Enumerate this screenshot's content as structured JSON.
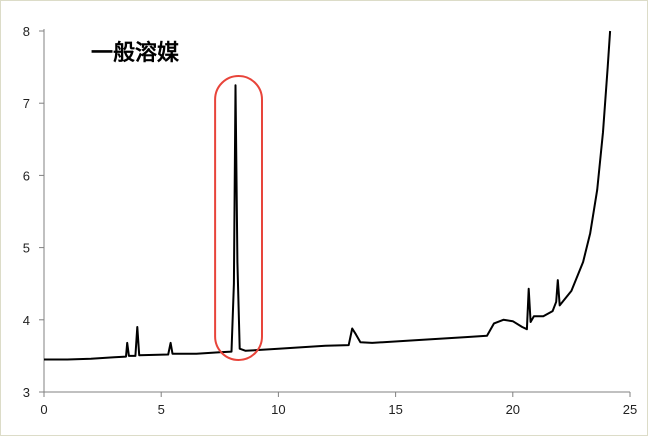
{
  "chart_data": {
    "type": "line",
    "title": "一般溶媒",
    "xlabel": "",
    "ylabel": "",
    "xlim": [
      0,
      25
    ],
    "ylim": [
      3,
      8
    ],
    "x_ticks": [
      "0",
      "5",
      "10",
      "15",
      "20",
      "25"
    ],
    "y_ticks": [
      "3",
      "4",
      "5",
      "6",
      "7",
      "8"
    ],
    "grid": false,
    "legend": "none",
    "line_color": "#000000",
    "highlight_color": "#e8443a",
    "highlight_range_x": [
      7.3,
      9.3
    ],
    "series": [
      {
        "values": [
          [
            0.0,
            3.45
          ],
          [
            1.0,
            3.45
          ],
          [
            2.0,
            3.46
          ],
          [
            3.0,
            3.48
          ],
          [
            3.5,
            3.49
          ],
          [
            3.55,
            3.68
          ],
          [
            3.62,
            3.5
          ],
          [
            3.9,
            3.5
          ],
          [
            3.98,
            3.9
          ],
          [
            4.06,
            3.51
          ],
          [
            5.3,
            3.52
          ],
          [
            5.4,
            3.68
          ],
          [
            5.48,
            3.53
          ],
          [
            6.5,
            3.53
          ],
          [
            7.5,
            3.55
          ],
          [
            8.0,
            3.56
          ],
          [
            8.1,
            4.5
          ],
          [
            8.17,
            7.25
          ],
          [
            8.25,
            4.8
          ],
          [
            8.35,
            3.6
          ],
          [
            8.6,
            3.57
          ],
          [
            10.0,
            3.6
          ],
          [
            12.0,
            3.64
          ],
          [
            13.0,
            3.65
          ],
          [
            13.15,
            3.88
          ],
          [
            13.3,
            3.8
          ],
          [
            13.5,
            3.69
          ],
          [
            14.0,
            3.68
          ],
          [
            16.0,
            3.72
          ],
          [
            18.0,
            3.76
          ],
          [
            18.9,
            3.78
          ],
          [
            19.2,
            3.95
          ],
          [
            19.6,
            4.0
          ],
          [
            20.0,
            3.98
          ],
          [
            20.4,
            3.9
          ],
          [
            20.6,
            3.87
          ],
          [
            20.68,
            4.43
          ],
          [
            20.76,
            3.97
          ],
          [
            20.9,
            4.05
          ],
          [
            21.3,
            4.05
          ],
          [
            21.7,
            4.12
          ],
          [
            21.85,
            4.25
          ],
          [
            21.92,
            4.55
          ],
          [
            22.0,
            4.2
          ],
          [
            22.5,
            4.4
          ],
          [
            23.0,
            4.8
          ],
          [
            23.3,
            5.2
          ],
          [
            23.6,
            5.8
          ],
          [
            23.85,
            6.6
          ],
          [
            24.05,
            7.5
          ],
          [
            24.15,
            8.0
          ]
        ]
      }
    ]
  }
}
